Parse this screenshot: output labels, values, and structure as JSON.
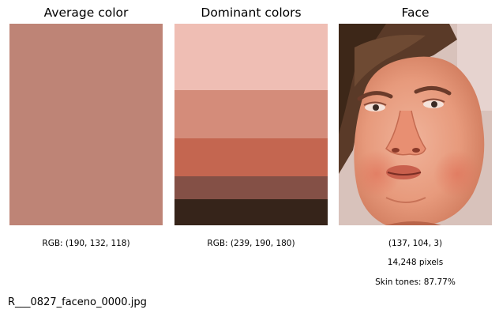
{
  "panels": {
    "average": {
      "title": "Average color",
      "color": "#be8476",
      "caption": "RGB: (190, 132, 118)"
    },
    "dominant": {
      "title": "Dominant colors",
      "stripes": [
        {
          "color": "#efbeb4",
          "share": 0.33
        },
        {
          "color": "#d48c7a",
          "share": 0.24
        },
        {
          "color": "#c46650",
          "share": 0.19
        },
        {
          "color": "#845046",
          "share": 0.115
        },
        {
          "color": "#36241a",
          "share": 0.125
        }
      ],
      "caption": "RGB: (239, 190, 180)"
    },
    "face": {
      "title": "Face",
      "captions": [
        "(137, 104, 3)",
        "14,248 pixels",
        "Skin tones: 87.77%"
      ]
    }
  },
  "filename": "R___0827_faceno_0000.jpg"
}
